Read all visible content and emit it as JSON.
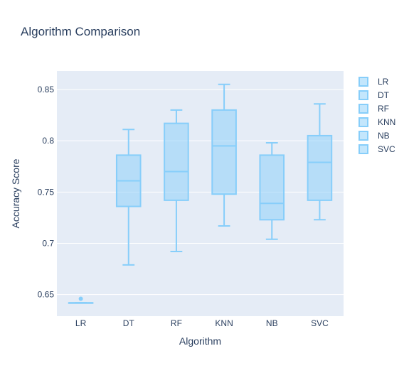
{
  "chart_data": {
    "type": "box",
    "title": "Algorithm Comparison",
    "xlabel": "Algorithm",
    "ylabel": "Accuracy Score",
    "ylim": [
      0.629,
      0.868
    ],
    "yticks": [
      0.65,
      0.7,
      0.75,
      0.8,
      0.85
    ],
    "ytick_labels": [
      "0.65",
      "0.7",
      "0.75",
      "0.8",
      "0.85"
    ],
    "categories": [
      "LR",
      "DT",
      "RF",
      "KNN",
      "NB",
      "SVC"
    ],
    "series": [
      {
        "name": "LR",
        "min": 0.642,
        "q1": 0.642,
        "median": 0.642,
        "q3": 0.642,
        "max": 0.642,
        "outliers": [
          0.646
        ]
      },
      {
        "name": "DT",
        "min": 0.679,
        "q1": 0.736,
        "median": 0.761,
        "q3": 0.786,
        "max": 0.811,
        "outliers": []
      },
      {
        "name": "RF",
        "min": 0.692,
        "q1": 0.742,
        "median": 0.77,
        "q3": 0.817,
        "max": 0.83,
        "outliers": []
      },
      {
        "name": "KNN",
        "min": 0.717,
        "q1": 0.748,
        "median": 0.795,
        "q3": 0.83,
        "max": 0.855,
        "outliers": []
      },
      {
        "name": "NB",
        "min": 0.704,
        "q1": 0.723,
        "median": 0.739,
        "q3": 0.786,
        "max": 0.798,
        "outliers": []
      },
      {
        "name": "SVC",
        "min": 0.723,
        "q1": 0.742,
        "median": 0.779,
        "q3": 0.805,
        "max": 0.836,
        "outliers": []
      }
    ],
    "colors": {
      "line": "#87cefa",
      "fill": "rgba(135,206,250,0.5)",
      "plot_bg": "#e5ecf6",
      "grid": "#ffffff",
      "text": "#2a3f5f"
    },
    "grid": true,
    "legend": "right"
  }
}
